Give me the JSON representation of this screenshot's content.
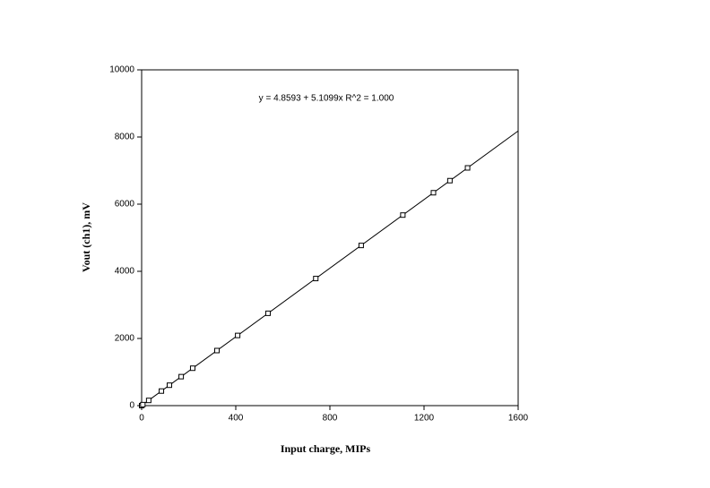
{
  "chart_data": {
    "type": "scatter",
    "annotation": "y = 4.8593 + 5.1099x   R^2 = 1.000",
    "fit": {
      "intercept": 4.8593,
      "slope": 5.1099
    },
    "x_label": "Input charge, MIPs",
    "y_label": "Vout (ch1), mV",
    "x": [
      0,
      5,
      30,
      84,
      118,
      168,
      217,
      320,
      408,
      537,
      740,
      933,
      1110,
      1240,
      1310,
      1385
    ],
    "values": [
      0,
      30,
      155,
      434,
      608,
      863,
      1114,
      1640,
      2090,
      2750,
      3785,
      4770,
      5675,
      6340,
      6700,
      7080
    ],
    "color": "#000000",
    "xlim": [
      0,
      1600
    ],
    "xticks": [
      0,
      400,
      800,
      1200,
      1600
    ],
    "ylim": [
      0,
      10000
    ],
    "yticks": [
      0,
      2000,
      4000,
      6000,
      8000,
      10000
    ],
    "grid": false
  }
}
